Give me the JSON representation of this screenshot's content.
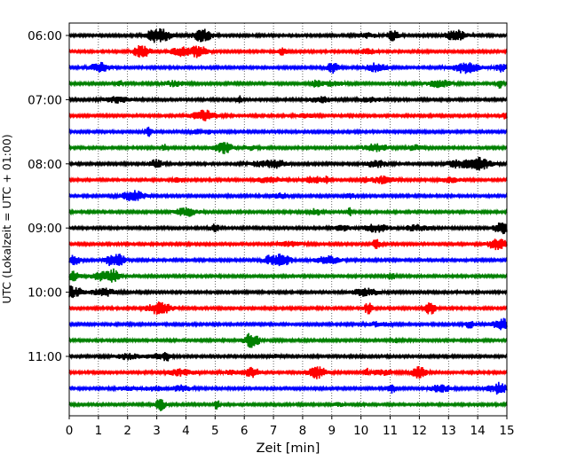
{
  "chart_data": {
    "type": "line",
    "chart_kind": "helicorder / seismogram drum plot",
    "xlabel": "Zeit  [min]",
    "ylabel": "UTC (Lokalzeit = UTC + 01:00)",
    "xlim": [
      0,
      15
    ],
    "x_ticks": [
      "0",
      "1",
      "2",
      "3",
      "4",
      "5",
      "6",
      "7",
      "8",
      "9",
      "10",
      "11",
      "12",
      "13",
      "14",
      "15"
    ],
    "y_ticks": [
      "06:00",
      "07:00",
      "08:00",
      "09:00",
      "10:00",
      "11:00"
    ],
    "grid": "vertical dotted lines at each minute",
    "trace_interval_min": 15,
    "traces_start": "06:00",
    "trace_count": 24,
    "trace_colors": [
      "#000000",
      "#ff0000",
      "#0000ff",
      "#008000"
    ]
  }
}
